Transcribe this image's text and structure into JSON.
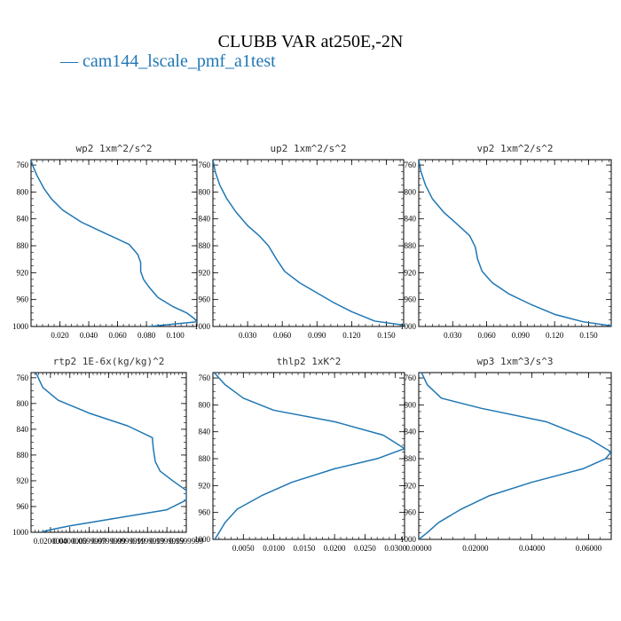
{
  "title": "CLUBB VAR at250E,-2N",
  "legend": {
    "marker": "—",
    "label": "cam144_lscale_pmf_a1test"
  },
  "colors": {
    "series": "#1f77b4",
    "axes": "#000000"
  },
  "chart_data": [
    {
      "type": "line",
      "title": "wp2   1xm^2/s^2",
      "series_name": "cam144_lscale_pmf_a1test",
      "xlim": [
        0.0,
        0.115
      ],
      "ylim": [
        1000,
        752
      ],
      "xticks": [
        0.02,
        0.04,
        0.06,
        0.08,
        0.1
      ],
      "xtick_labels": [
        "0.020",
        "0.040",
        "0.060",
        "0.080",
        "0.100"
      ],
      "yticks": [
        760,
        800,
        840,
        880,
        920,
        960,
        1000
      ],
      "x": [
        0.0,
        0.001,
        0.004,
        0.009,
        0.014,
        0.022,
        0.035,
        0.052,
        0.068,
        0.074,
        0.076,
        0.076,
        0.078,
        0.082,
        0.088,
        0.098,
        0.108,
        0.113,
        0.115,
        0.082
      ],
      "y": [
        752,
        760,
        775,
        795,
        810,
        827,
        845,
        862,
        878,
        893,
        905,
        918,
        930,
        942,
        957,
        970,
        980,
        988,
        993,
        1000
      ]
    },
    {
      "type": "line",
      "title": "up2   1xm^2/s^2",
      "series_name": "cam144_lscale_pmf_a1test",
      "xlim": [
        0.0,
        0.165
      ],
      "ylim": [
        1000,
        752
      ],
      "xticks": [
        0.03,
        0.06,
        0.09,
        0.12,
        0.15
      ],
      "xtick_labels": [
        "0.030",
        "0.060",
        "0.090",
        "0.120",
        "0.150"
      ],
      "yticks": [
        760,
        800,
        840,
        880,
        920,
        960,
        1000
      ],
      "x": [
        0.0,
        0.002,
        0.006,
        0.012,
        0.02,
        0.03,
        0.04,
        0.048,
        0.055,
        0.062,
        0.075,
        0.09,
        0.105,
        0.12,
        0.14,
        0.165
      ],
      "y": [
        752,
        770,
        790,
        810,
        830,
        850,
        865,
        880,
        900,
        918,
        935,
        950,
        965,
        978,
        992,
        998
      ]
    },
    {
      "type": "line",
      "title": "vp2   1xm^2/s^2",
      "series_name": "cam144_lscale_pmf_a1test",
      "xlim": [
        0.0,
        0.17
      ],
      "ylim": [
        1000,
        752
      ],
      "xticks": [
        0.03,
        0.06,
        0.09,
        0.12,
        0.15
      ],
      "xtick_labels": [
        "0.030",
        "0.060",
        "0.090",
        "0.120",
        "0.150"
      ],
      "yticks": [
        760,
        800,
        840,
        880,
        920,
        960,
        1000
      ],
      "x": [
        0.0,
        0.002,
        0.006,
        0.012,
        0.022,
        0.034,
        0.045,
        0.05,
        0.052,
        0.056,
        0.065,
        0.08,
        0.1,
        0.12,
        0.145,
        0.17
      ],
      "y": [
        752,
        770,
        790,
        810,
        830,
        848,
        865,
        882,
        900,
        918,
        935,
        952,
        968,
        982,
        993,
        999
      ]
    },
    {
      "type": "line",
      "title": "rtp2   1E-6x(kg/kg)^2",
      "series_name": "cam144_lscale_pmf_a1test",
      "xlim": [
        0.0,
        0.16
      ],
      "ylim": [
        1000,
        752
      ],
      "xticks": [
        0.02,
        0.04,
        0.06,
        0.08,
        0.1,
        0.12,
        0.14,
        0.16
      ],
      "xtick_labels": [
        "0.0200000",
        "0.0400000",
        "0.0599999",
        "0.0799999",
        "0.0999999",
        "0.1199999",
        "0.1399999",
        "0.1599999"
      ],
      "yticks": [
        760,
        800,
        840,
        880,
        920,
        960,
        1000
      ],
      "x": [
        0.005,
        0.012,
        0.028,
        0.06,
        0.1,
        0.125,
        0.126,
        0.128,
        0.133,
        0.146,
        0.16,
        0.16,
        0.14,
        0.08,
        0.04,
        0.02,
        0.01
      ],
      "y": [
        752,
        775,
        795,
        815,
        835,
        853,
        870,
        890,
        905,
        920,
        935,
        950,
        965,
        980,
        990,
        996,
        1000
      ]
    },
    {
      "type": "line",
      "title": "thlp2   1xK^2",
      "series_name": "cam144_lscale_pmf_a1test",
      "xlim": [
        0.0,
        0.0315
      ],
      "ylim": [
        1000,
        752
      ],
      "xticks": [
        0.005,
        0.01,
        0.015,
        0.02,
        0.025,
        0.03
      ],
      "xtick_labels": [
        "0.0050",
        "0.0100",
        "0.0150",
        "0.0200",
        "0.0250",
        "0.0300"
      ],
      "yticks": [
        760,
        800,
        840,
        880,
        920,
        960,
        1000
      ],
      "x": [
        0.0002,
        0.002,
        0.005,
        0.01,
        0.02,
        0.028,
        0.0315,
        0.027,
        0.02,
        0.013,
        0.008,
        0.004,
        0.002,
        0.001,
        0.0003
      ],
      "y": [
        752,
        770,
        790,
        808,
        825,
        845,
        865,
        880,
        895,
        915,
        935,
        955,
        975,
        990,
        1000
      ]
    },
    {
      "type": "line",
      "title": "wp3   1xm^3/s^3",
      "series_name": "cam144_lscale_pmf_a1test",
      "xlim": [
        0.0,
        0.068
      ],
      "ylim": [
        1000,
        752
      ],
      "xticks": [
        0.0,
        0.02,
        0.04,
        0.06
      ],
      "xtick_labels": [
        "0.00000",
        "0.02000",
        "0.04000",
        "0.06000"
      ],
      "yticks": [
        760,
        800,
        840,
        880,
        920,
        960,
        1000
      ],
      "x": [
        0.001,
        0.003,
        0.008,
        0.022,
        0.045,
        0.06,
        0.068,
        0.066,
        0.058,
        0.04,
        0.025,
        0.015,
        0.007,
        0.003,
        0.0
      ],
      "y": [
        752,
        770,
        790,
        805,
        825,
        850,
        870,
        880,
        895,
        915,
        935,
        955,
        975,
        990,
        1000
      ]
    }
  ]
}
